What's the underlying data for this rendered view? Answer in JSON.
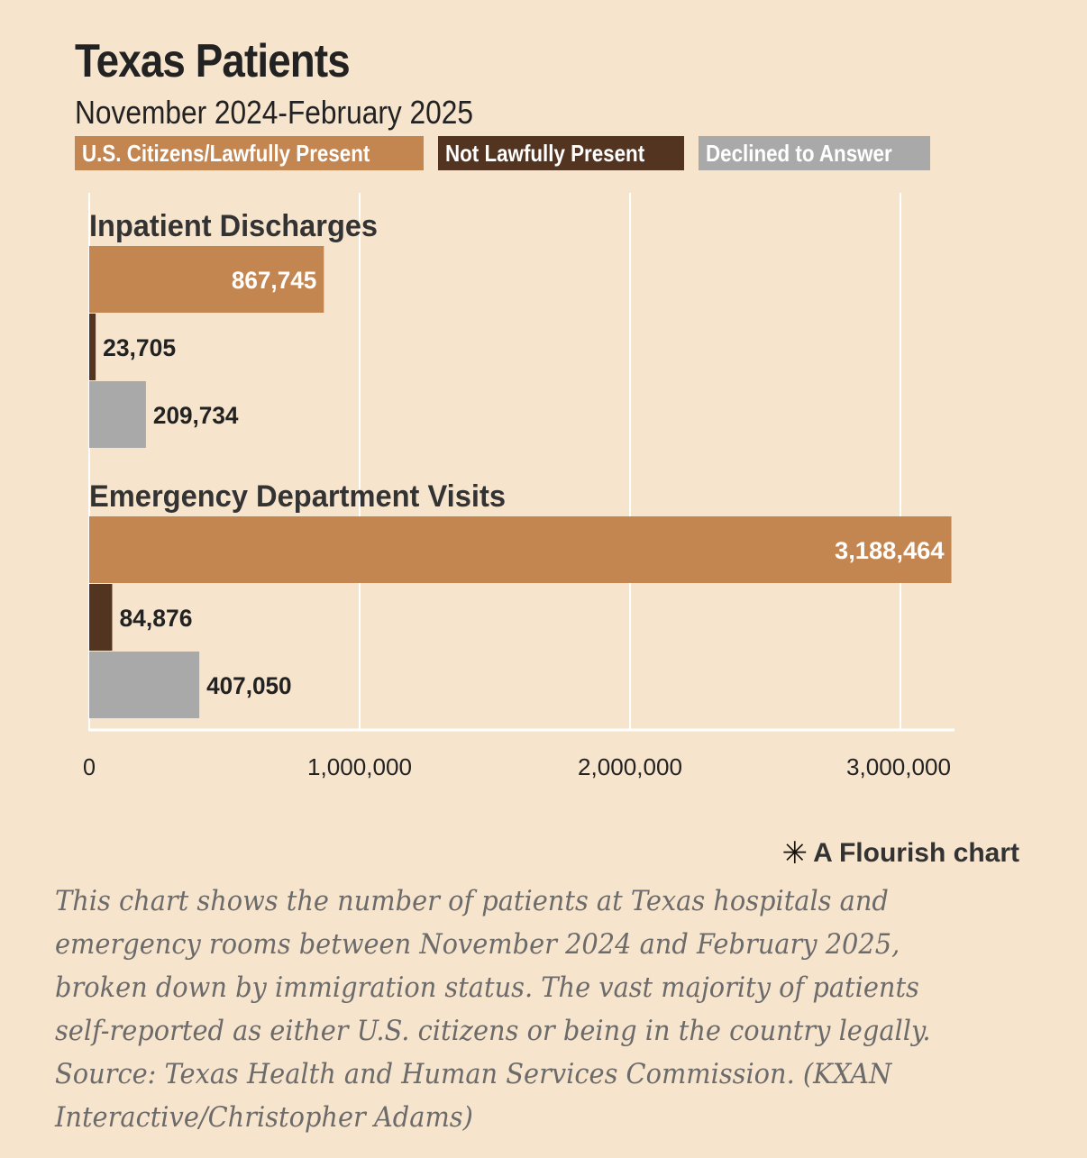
{
  "chart_data": {
    "type": "bar",
    "orientation": "horizontal",
    "title": "Texas Patients",
    "subtitle": "November 2024-February 2025",
    "legend": [
      {
        "name": "U.S. Citizens/Lawfully Present",
        "color": "#c48651"
      },
      {
        "name": "Not Lawfully Present",
        "color": "#523421"
      },
      {
        "name": "Declined to Answer",
        "color": "#a9a9a9"
      }
    ],
    "groups": [
      {
        "label": "Inpatient Discharges",
        "values": [
          867745,
          23705,
          209734
        ],
        "labels": [
          "867,745",
          "23,705",
          "209,734"
        ]
      },
      {
        "label": "Emergency Department Visits",
        "values": [
          3188464,
          84876,
          407050
        ],
        "labels": [
          "3,188,464",
          "84,876",
          "407,050"
        ]
      }
    ],
    "xlim": [
      0,
      3200000
    ],
    "xticks": [
      0,
      1000000,
      2000000,
      3000000
    ],
    "xtick_labels": [
      "0",
      "1,000,000",
      "2,000,000",
      "3,000,000"
    ],
    "grid": true
  },
  "credit": {
    "icon": "flourish-asterisk-icon",
    "text": "A Flourish chart"
  },
  "caption": {
    "lines": [
      "This chart shows the number of patients at Texas hospitals and",
      "emergency rooms between November 2024 and February 2025,",
      "broken down by immigration status. The vast majority of patients",
      "self-reported as either U.S. citizens or being in the country legally.",
      "Source: Texas Health and Human Services Commission. (KXAN",
      "Interactive/Christopher Adams)"
    ]
  }
}
